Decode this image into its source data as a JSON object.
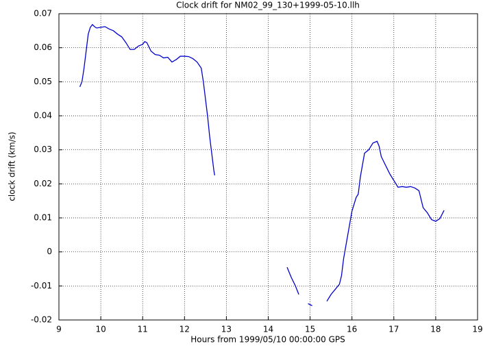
{
  "chart_data": {
    "type": "line",
    "title": "Clock drift for NM02_99_130+1999-05-10.llh",
    "x_label": "Hours from 1999/05/10 00:00:00 GPS",
    "y_label": "clock drift (km/s)",
    "x": [
      9.5,
      9.55,
      9.6,
      9.65,
      9.7,
      9.75,
      9.8,
      9.85,
      9.9,
      10.0,
      10.1,
      10.2,
      10.3,
      10.4,
      10.5,
      10.6,
      10.7,
      10.8,
      10.9,
      11.0,
      11.05,
      11.1,
      11.2,
      11.3,
      11.4,
      11.5,
      11.6,
      11.7,
      11.8,
      11.9,
      12.0,
      12.1,
      12.2,
      12.3,
      12.4,
      12.45,
      12.5,
      12.55,
      12.6,
      12.65,
      12.7,
      12.72,
      13.5,
      14.45,
      14.55,
      14.65,
      14.73,
      14.85,
      14.95,
      15.05,
      15.2,
      15.4,
      15.5,
      15.6,
      15.7,
      15.75,
      15.8,
      15.9,
      16.0,
      16.1,
      16.15,
      16.2,
      16.3,
      16.4,
      16.5,
      16.6,
      16.65,
      16.7,
      16.8,
      16.9,
      17.0,
      17.1,
      17.2,
      17.3,
      17.4,
      17.5,
      17.6,
      17.7,
      17.8,
      17.9,
      18.0,
      18.1,
      18.2
    ],
    "series": [
      {
        "color": "#0000cc",
        "values": [
          0.0485,
          0.05,
          0.054,
          0.059,
          0.064,
          0.066,
          0.0668,
          0.0662,
          0.0658,
          0.066,
          0.0662,
          0.0655,
          0.065,
          0.064,
          0.0632,
          0.0615,
          0.0595,
          0.0595,
          0.0605,
          0.061,
          0.0618,
          0.0615,
          0.059,
          0.058,
          0.0578,
          0.057,
          0.0572,
          0.0558,
          0.0565,
          0.0575,
          0.0575,
          0.0574,
          0.0568,
          0.0558,
          0.054,
          0.05,
          0.045,
          0.04,
          0.034,
          0.029,
          0.024,
          0.0225,
          null,
          -0.0045,
          -0.0075,
          -0.01,
          -0.0125,
          null,
          -0.0152,
          -0.0158,
          null,
          -0.0145,
          -0.0125,
          -0.011,
          -0.0095,
          -0.007,
          -0.002,
          0.005,
          0.012,
          0.016,
          0.017,
          0.022,
          0.029,
          0.03,
          0.032,
          0.0325,
          0.031,
          0.028,
          0.0255,
          0.023,
          0.021,
          0.019,
          0.0192,
          0.019,
          0.0192,
          0.0188,
          0.018,
          0.013,
          0.0115,
          0.0095,
          0.009,
          0.0098,
          0.0122
        ]
      }
    ],
    "xlim": [
      9,
      19
    ],
    "xticks": [
      9,
      10,
      11,
      12,
      13,
      14,
      15,
      16,
      17,
      18,
      19
    ],
    "ylim": [
      -0.02,
      0.07
    ],
    "yticks": [
      -0.02,
      -0.01,
      0,
      0.01,
      0.02,
      0.03,
      0.04,
      0.05,
      0.06,
      0.07
    ],
    "grid": true
  }
}
